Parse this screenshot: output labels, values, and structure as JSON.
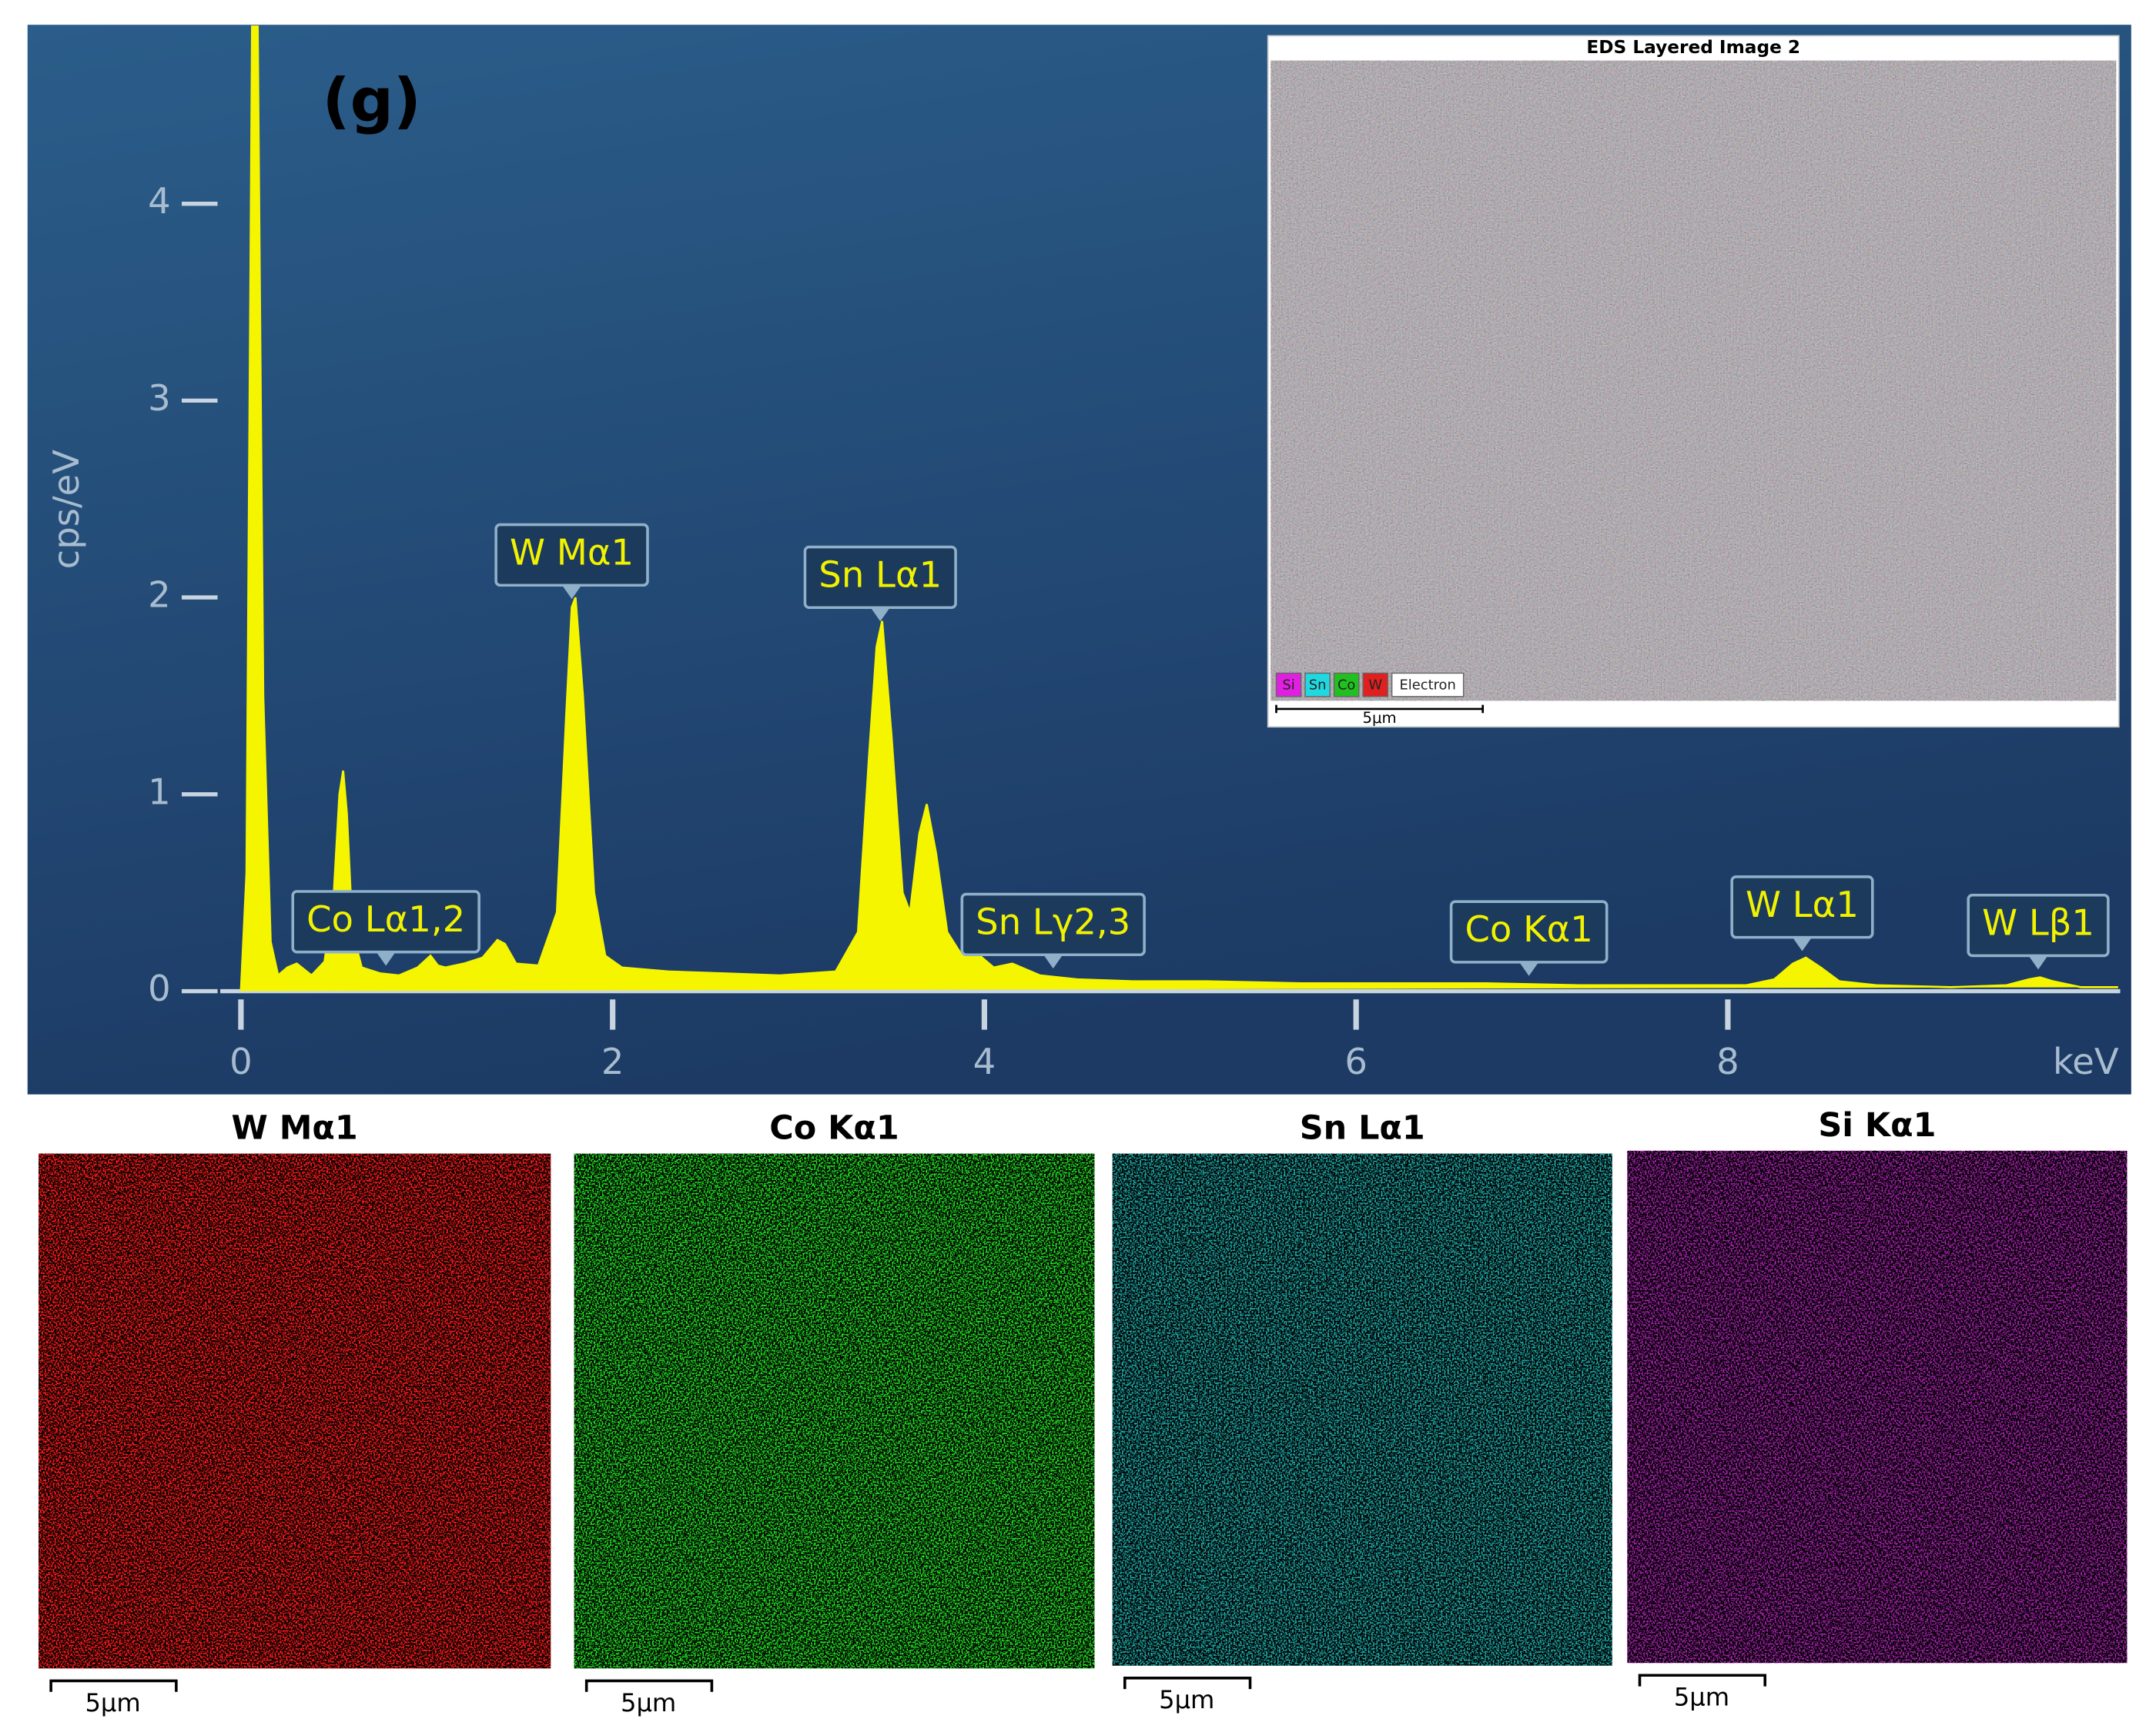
{
  "panel_label": "(g)",
  "chart_data": {
    "type": "area",
    "color": "#f5f500",
    "x_label": "keV",
    "y_label": "cps/eV",
    "xlim": [
      0,
      10.1
    ],
    "ylim": [
      0,
      4.9
    ],
    "xticks": [
      0,
      2,
      4,
      6,
      8
    ],
    "yticks": [
      0,
      1,
      2,
      3,
      4
    ],
    "x": [
      0,
      0.03,
      0.06,
      0.09,
      0.12,
      0.16,
      0.2,
      0.25,
      0.3,
      0.38,
      0.45,
      0.5,
      0.53,
      0.55,
      0.57,
      0.6,
      0.65,
      0.75,
      0.85,
      0.95,
      1.02,
      1.06,
      1.1,
      1.2,
      1.3,
      1.38,
      1.42,
      1.48,
      1.6,
      1.7,
      1.75,
      1.78,
      1.8,
      1.84,
      1.9,
      1.96,
      2.05,
      2.3,
      2.6,
      2.9,
      3.2,
      3.32,
      3.38,
      3.42,
      3.45,
      3.5,
      3.56,
      3.6,
      3.65,
      3.69,
      3.74,
      3.8,
      3.88,
      3.95,
      4.05,
      4.15,
      4.3,
      4.5,
      4.8,
      5.2,
      5.7,
      6.2,
      6.7,
      7.2,
      7.7,
      8.1,
      8.25,
      8.35,
      8.42,
      8.5,
      8.6,
      8.8,
      9.2,
      9.5,
      9.62,
      9.68,
      9.75,
      9.9,
      10.1
    ],
    "values": [
      0,
      0.6,
      4.9,
      4.9,
      1.5,
      0.25,
      0.08,
      0.12,
      0.14,
      0.08,
      0.15,
      0.5,
      1.0,
      1.12,
      0.9,
      0.3,
      0.12,
      0.09,
      0.08,
      0.12,
      0.18,
      0.13,
      0.12,
      0.14,
      0.17,
      0.26,
      0.24,
      0.14,
      0.13,
      0.4,
      1.4,
      1.95,
      2.0,
      1.5,
      0.5,
      0.18,
      0.12,
      0.1,
      0.09,
      0.08,
      0.1,
      0.3,
      1.2,
      1.75,
      1.88,
      1.3,
      0.5,
      0.4,
      0.8,
      0.95,
      0.7,
      0.3,
      0.18,
      0.2,
      0.12,
      0.14,
      0.08,
      0.06,
      0.05,
      0.05,
      0.04,
      0.04,
      0.04,
      0.03,
      0.03,
      0.03,
      0.06,
      0.14,
      0.17,
      0.12,
      0.05,
      0.03,
      0.02,
      0.03,
      0.06,
      0.07,
      0.05,
      0.02,
      0.02
    ],
    "annotations": [
      {
        "text": "Co Lα1,2",
        "x": 0.78
      },
      {
        "text": "W Mα1",
        "x": 1.78
      },
      {
        "text": "Sn Lα1",
        "x": 3.44
      },
      {
        "text": "Sn Lγ2,3",
        "x": 4.37
      },
      {
        "text": "Co Kα1",
        "x": 6.93
      },
      {
        "text": "W Lα1",
        "x": 8.4
      },
      {
        "text": "W Lβ1",
        "x": 9.67
      }
    ]
  },
  "inset": {
    "title": "EDS Layered Image 2",
    "legend": [
      {
        "name": "Si",
        "color": "#e020e0"
      },
      {
        "name": "Sn",
        "color": "#20d8e0"
      },
      {
        "name": "Co",
        "color": "#20c020"
      },
      {
        "name": "W",
        "color": "#e02020"
      },
      {
        "name": "Electron",
        "color": "#ffffff"
      }
    ],
    "scale_bar": "5μm"
  },
  "maps": [
    {
      "title": "W Mα1",
      "color": "#ff1a1a",
      "scale_bar": "5μm"
    },
    {
      "title": "Co Kα1",
      "color": "#22dd22",
      "scale_bar": "5μm"
    },
    {
      "title": "Sn Lα1",
      "color": "#1fa8a8",
      "scale_bar": "5μm"
    },
    {
      "title": "Si Kα1",
      "color": "#a020a8",
      "scale_bar": "5μm"
    }
  ]
}
